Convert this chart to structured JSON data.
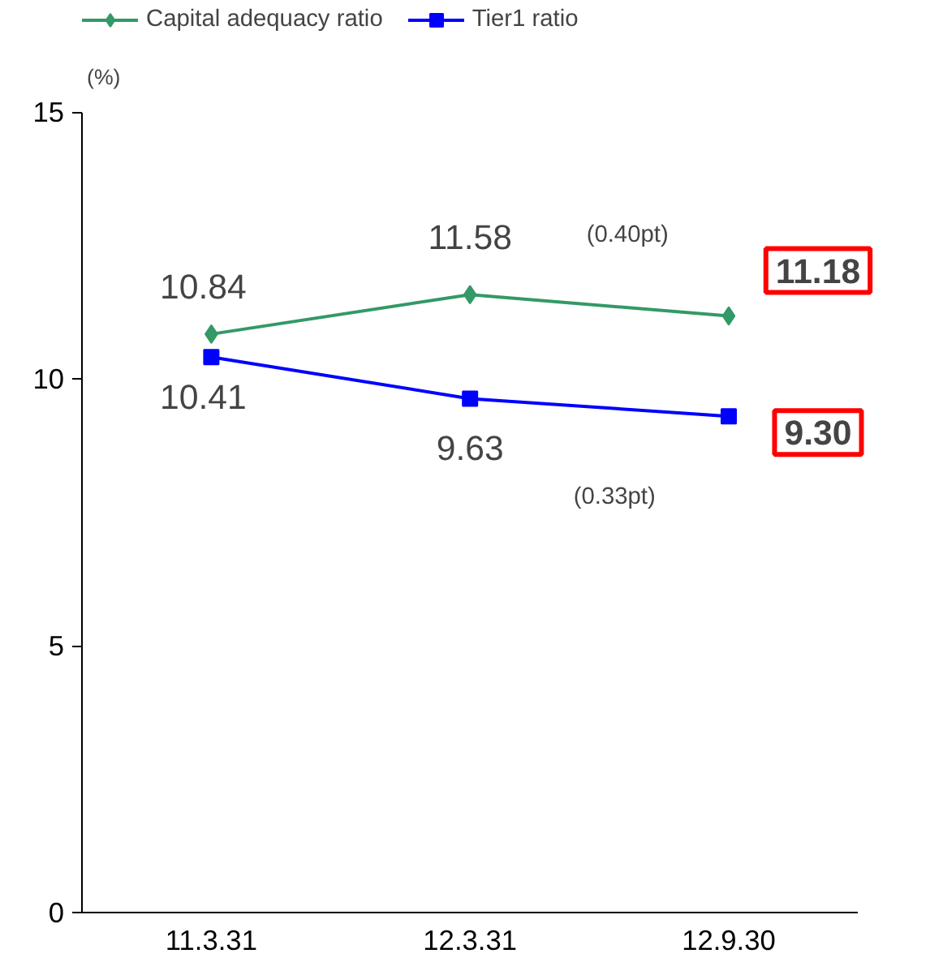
{
  "chart_data": {
    "type": "line",
    "ylabel": "(%)",
    "categories": [
      "11.3.31",
      "12.3.31",
      "12.9.30"
    ],
    "series": [
      {
        "name": "Capital adequacy ratio",
        "color": "#339966",
        "values": [
          10.84,
          11.58,
          11.18
        ],
        "value_labels": [
          "10.84",
          "11.58",
          "11.18"
        ],
        "marker": "diamond"
      },
      {
        "name": "Tier1 ratio",
        "color": "#0000ff",
        "values": [
          10.41,
          9.63,
          9.3
        ],
        "value_labels": [
          "10.41",
          "9.63",
          "9.30"
        ],
        "marker": "square"
      }
    ],
    "ylim": [
      0,
      15
    ],
    "yticks": [
      0,
      5,
      10,
      15
    ],
    "grid": false,
    "legend": "top left",
    "data_labels": true,
    "annotations": [
      "(0.40pt)",
      "(0.33pt)"
    ]
  }
}
